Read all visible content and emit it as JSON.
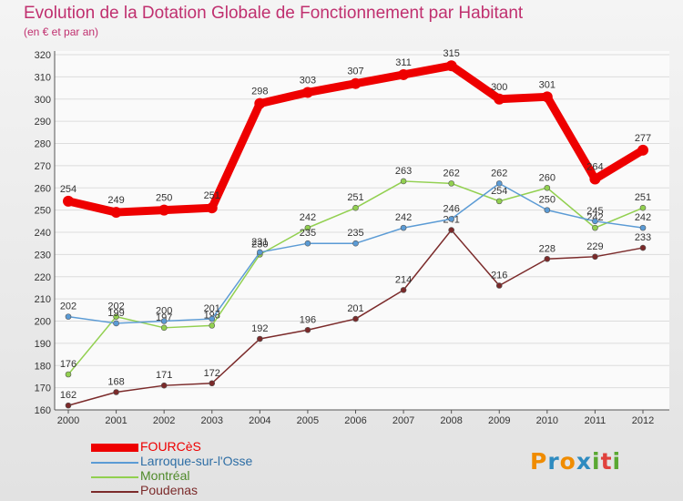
{
  "chart_data": {
    "type": "line",
    "title": "Evolution de la Dotation Globale de Fonctionnement par Habitant",
    "subtitle": "(en € et par an)",
    "categories": [
      "2000",
      "2001",
      "2002",
      "2003",
      "2004",
      "2005",
      "2006",
      "2007",
      "2008",
      "2009",
      "2010",
      "2011",
      "2012"
    ],
    "ylim": [
      160,
      320
    ],
    "yticks": [
      160,
      170,
      180,
      190,
      200,
      210,
      220,
      230,
      240,
      250,
      260,
      270,
      280,
      290,
      300,
      310,
      320
    ],
    "series": [
      {
        "name": "FOURCèS",
        "color": "#ee0000",
        "values": [
          254,
          249,
          250,
          251,
          298,
          303,
          307,
          311,
          315,
          300,
          301,
          264,
          277
        ]
      },
      {
        "name": "Larroque-sur-l'Osse",
        "color": "#5b9bd5",
        "values": [
          202,
          199,
          200,
          201,
          231,
          235,
          235,
          242,
          246,
          262,
          250,
          245,
          242
        ]
      },
      {
        "name": "Montréal",
        "color": "#92d050",
        "values": [
          176,
          202,
          197,
          198,
          230,
          242,
          251,
          263,
          262,
          254,
          260,
          242,
          251
        ]
      },
      {
        "name": "Poudenas",
        "color": "#7b2a2a",
        "values": [
          162,
          168,
          171,
          172,
          192,
          196,
          201,
          214,
          241,
          216,
          228,
          229,
          233
        ]
      }
    ]
  },
  "brand": {
    "letters": [
      "P",
      "r",
      "o",
      "x",
      "i",
      "t",
      "i"
    ],
    "colors": [
      "#f08c00",
      "#2e8bc0",
      "#f08c00",
      "#2e8bc0",
      "#5aa832",
      "#e0413c",
      "#5aa832"
    ]
  }
}
